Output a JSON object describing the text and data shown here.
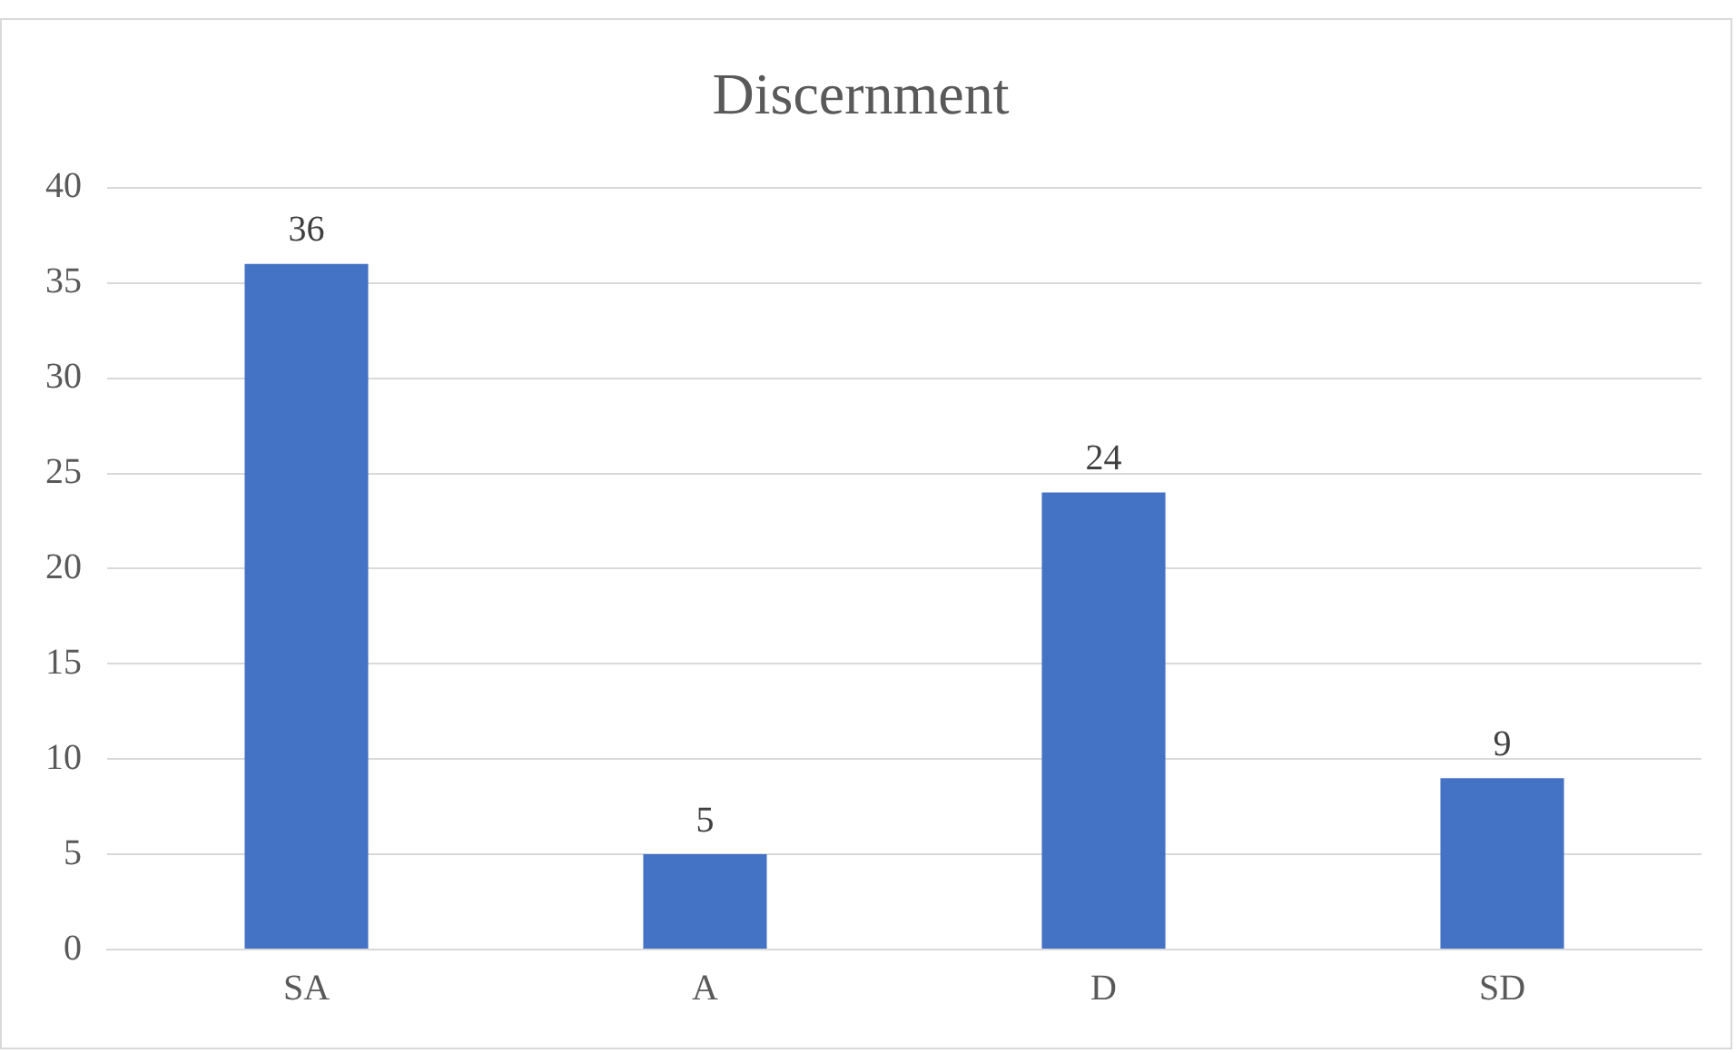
{
  "chart_data": {
    "type": "bar",
    "title": "Discernment",
    "categories": [
      "SA",
      "A",
      "D",
      "SD"
    ],
    "values": [
      36,
      5,
      24,
      9
    ],
    "color": "#4472c4",
    "ylim": [
      0,
      40
    ],
    "yticks": [
      0,
      5,
      10,
      15,
      20,
      25,
      30,
      35,
      40
    ],
    "grid": "y",
    "data_labels": true
  }
}
